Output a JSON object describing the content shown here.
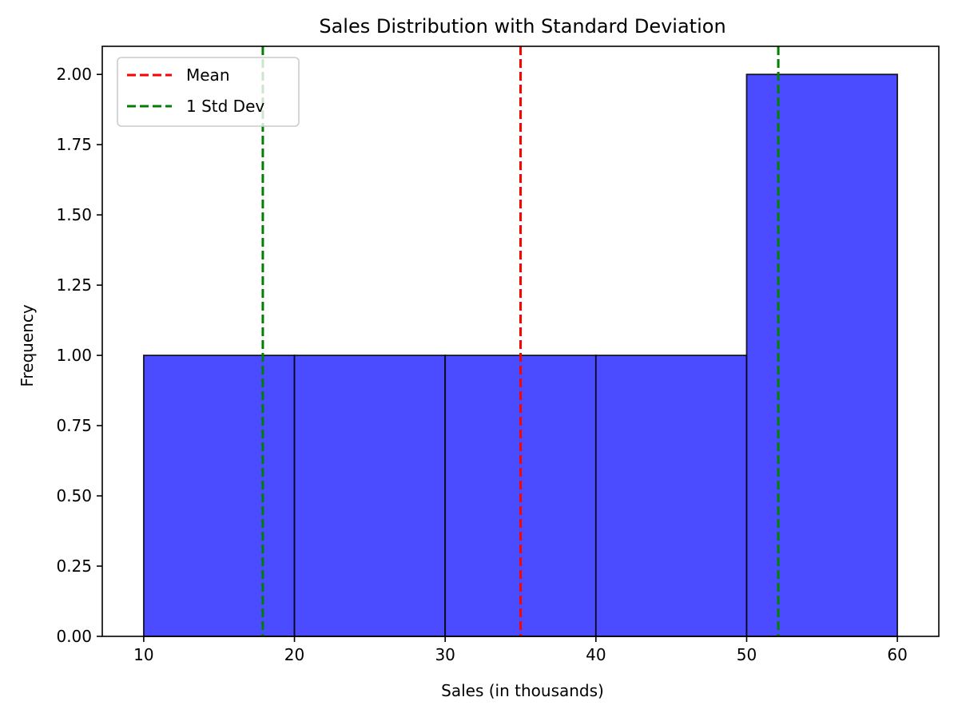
{
  "chart_data": {
    "type": "bar",
    "subtype": "histogram",
    "title": "Sales Distribution with Standard Deviation",
    "xlabel": "Sales (in thousands)",
    "ylabel": "Frequency",
    "xlim": [
      7.25,
      62.75
    ],
    "ylim": [
      0,
      2.1
    ],
    "x_ticks": [
      10,
      20,
      30,
      40,
      50,
      60
    ],
    "y_ticks": [
      0,
      0.25,
      0.5,
      0.75,
      1.0,
      1.25,
      1.5,
      1.75,
      2.0
    ],
    "x_tick_labels": [
      "10",
      "20",
      "30",
      "40",
      "50",
      "60"
    ],
    "y_tick_labels": [
      "0.00",
      "0.25",
      "0.50",
      "0.75",
      "1.00",
      "1.25",
      "1.50",
      "1.75",
      "2.00"
    ],
    "bins": [
      {
        "start": 10,
        "end": 20,
        "count": 1
      },
      {
        "start": 20,
        "end": 30,
        "count": 1
      },
      {
        "start": 30,
        "end": 40,
        "count": 1
      },
      {
        "start": 40,
        "end": 50,
        "count": 1
      },
      {
        "start": 50,
        "end": 60,
        "count": 2
      }
    ],
    "bar_color": "#4b4bff",
    "bar_edge_color": "#000000",
    "reference_lines": [
      {
        "name": "Mean",
        "x": 35.0,
        "color": "#ff0000",
        "style": "dashed"
      },
      {
        "name": "1 Std Dev",
        "x": 17.9,
        "color": "#008000",
        "style": "dashed"
      },
      {
        "name": "1 Std Dev",
        "x": 52.1,
        "color": "#008000",
        "style": "dashed"
      }
    ],
    "legend": {
      "placement": "upper-left",
      "entries": [
        {
          "label": "Mean",
          "color": "#ff0000",
          "style": "dashed"
        },
        {
          "label": "1 Std Dev",
          "color": "#008000",
          "style": "dashed"
        }
      ]
    },
    "grid": false
  }
}
